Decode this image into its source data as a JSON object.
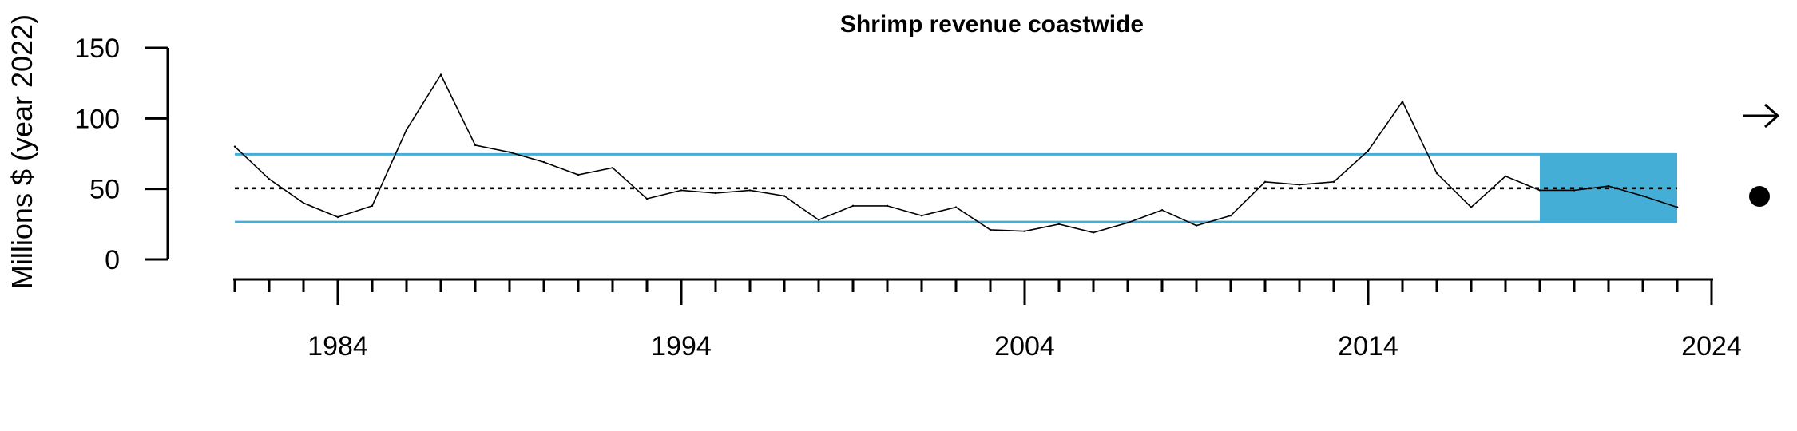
{
  "chart_data": {
    "type": "line",
    "title": "Shrimp revenue coastwide",
    "ylabel": "Millions $ (year 2022)",
    "xlabel": "",
    "x_tick_labels": [
      "1984",
      "1994",
      "2004",
      "2014",
      "2024"
    ],
    "y_tick_labels": [
      "0",
      "50",
      "100",
      "150"
    ],
    "xlim": [
      1981,
      2024
    ],
    "ylim": [
      0,
      150
    ],
    "series": [
      {
        "x": [
          1981,
          1982,
          1983,
          1984,
          1985,
          1986,
          1987,
          1988,
          1989,
          1990,
          1991,
          1992,
          1993,
          1994,
          1995,
          1996,
          1997,
          1998,
          1999,
          2000,
          2001,
          2002,
          2003,
          2004,
          2005,
          2006,
          2007,
          2008,
          2009,
          2010,
          2011,
          2012,
          2013,
          2014,
          2015,
          2016,
          2017,
          2018,
          2019,
          2020,
          2021,
          2022,
          2023
        ],
        "y": [
          80,
          57,
          40,
          30,
          38,
          92,
          131,
          81,
          76,
          69,
          60,
          65,
          43,
          49,
          47,
          49,
          45,
          28,
          38,
          38,
          31,
          37,
          21,
          20,
          25,
          19,
          26,
          35,
          24,
          31,
          55,
          53,
          55,
          77,
          112,
          61,
          37,
          59,
          49,
          49,
          52,
          45,
          37
        ]
      }
    ],
    "mean": 50.5,
    "upper_sd": 74.5,
    "lower_sd": 26.5,
    "recent_window": [
      2019,
      2023
    ],
    "colors": {
      "reference_band": "#44aed6",
      "series": "#000000"
    },
    "trend_indicator": "right-arrow-icon",
    "status_indicator": "filled-circle-icon"
  }
}
